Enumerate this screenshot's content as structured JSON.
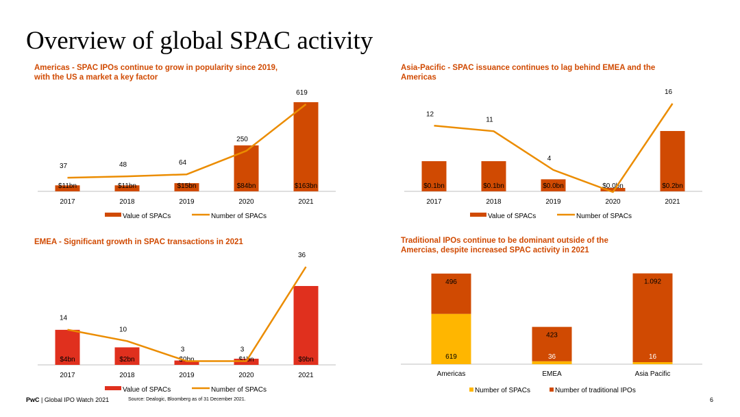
{
  "page": {
    "title": "Overview of global SPAC activity",
    "footer_brand": "PwC",
    "footer_doc": "| Global IPO Watch 2021",
    "source": "Source: Dealogic, Bloomberg as of 31 December 2021.",
    "page_number": "6"
  },
  "colors": {
    "accent_orange": "#d04a02",
    "line_orange": "#eb8c00",
    "red": "#e0301e",
    "yellow": "#ffb600"
  },
  "chart_data": [
    {
      "id": "americas",
      "type": "bar",
      "title": "Americas - SPAC IPOs continue to grow in popularity since 2019, with the US a market a key factor",
      "categories": [
        "2017",
        "2018",
        "2019",
        "2020",
        "2021"
      ],
      "series": [
        {
          "name": "Value of SPACs",
          "type": "bar",
          "color": "#d04a02",
          "values": [
            11,
            11,
            15,
            84,
            163
          ],
          "labels": [
            "$11bn",
            "$11bn",
            "$15bn",
            "$84bn",
            "$163bn"
          ]
        },
        {
          "name": "Number of SPACs",
          "type": "line",
          "color": "#eb8c00",
          "values": [
            37,
            48,
            64,
            250,
            619
          ],
          "labels": [
            "37",
            "48",
            "64",
            "250",
            "619"
          ]
        }
      ],
      "bar_max": 163,
      "line_max": 619,
      "legend": "bottom"
    },
    {
      "id": "asia",
      "type": "bar",
      "title": "Asia-Pacific - SPAC issuance continues to lag behind EMEA and the Americas",
      "categories": [
        "2017",
        "2018",
        "2019",
        "2020",
        "2021"
      ],
      "series": [
        {
          "name": "Value of SPACs",
          "type": "bar",
          "color": "#d04a02",
          "values": [
            0.1,
            0.1,
            0.04,
            0.0,
            0.2
          ],
          "labels": [
            "$0.1bn",
            "$0.1bn",
            "$0.0bn",
            "$0.0bn",
            "$0.2bn"
          ]
        },
        {
          "name": "Number of SPACs",
          "type": "line",
          "color": "#eb8c00",
          "values": [
            12,
            11,
            4,
            0,
            16
          ],
          "labels": [
            "12",
            "11",
            "4",
            "",
            "16"
          ]
        }
      ],
      "bar_max": 0.2,
      "line_max": 16,
      "legend": "bottom"
    },
    {
      "id": "emea",
      "type": "bar",
      "title": "EMEA - Significant growth in SPAC transactions in 2021",
      "categories": [
        "2017",
        "2018",
        "2019",
        "2020",
        "2021"
      ],
      "series": [
        {
          "name": "Value of SPACs",
          "type": "bar",
          "color": "#e0301e",
          "values": [
            4,
            2,
            0.5,
            0.7,
            9
          ],
          "labels": [
            "$4bn",
            "$2bn",
            "$0bn",
            "$1bn",
            "$9bn"
          ]
        },
        {
          "name": "Number of SPACs",
          "type": "line",
          "color": "#eb8c00",
          "values": [
            14,
            10,
            3,
            3,
            36
          ],
          "labels": [
            "14",
            "10",
            "3",
            "3",
            "36"
          ]
        }
      ],
      "bar_max": 9,
      "line_max": 36,
      "legend": "bottom"
    },
    {
      "id": "traditional",
      "type": "bar",
      "stacked": true,
      "title": "Traditional IPOs continue to be dominant outside of the Amercias, despite increased SPAC activity in 2021",
      "categories": [
        "Americas",
        "EMEA",
        "Asia Pacific"
      ],
      "series": [
        {
          "name": "Number of SPACs",
          "color": "#ffb600",
          "values": [
            619,
            36,
            16
          ],
          "labels": [
            "619",
            "36",
            "16"
          ]
        },
        {
          "name": "Number of traditional IPOs",
          "color": "#d04a02",
          "values": [
            496,
            423,
            1092
          ],
          "labels": [
            "496",
            "423",
            "1.092"
          ]
        }
      ],
      "legend": "bottom"
    }
  ]
}
